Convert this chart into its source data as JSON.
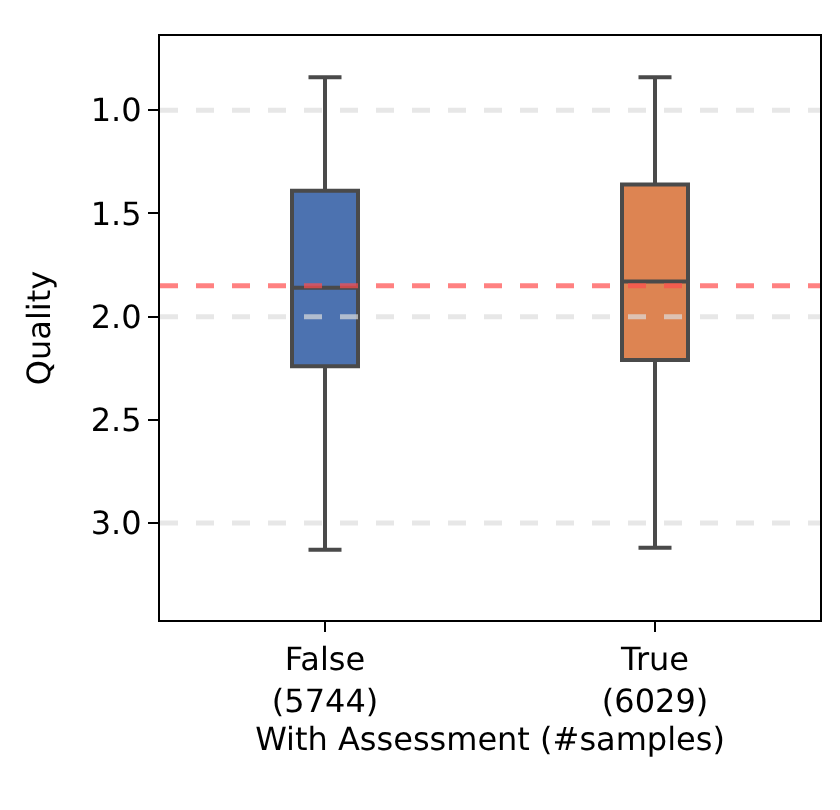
{
  "chart_data": {
    "type": "box",
    "ylabel": "Quality",
    "xlabel": "With Assessment (#samples)",
    "categories": [
      "False\n(5744)",
      "True\n(6029)"
    ],
    "series": [
      {
        "color": "#4c72b0",
        "boxes": [
          {
            "low": 0.84,
            "q1": 1.39,
            "median": 1.86,
            "q3": 2.24,
            "high": 3.13
          },
          null
        ]
      },
      {
        "color": "#dd8452",
        "boxes": [
          null,
          {
            "low": 0.84,
            "q1": 1.36,
            "median": 1.83,
            "q3": 2.21,
            "high": 3.12
          }
        ]
      }
    ],
    "ylim": [
      3.47,
      0.64
    ],
    "yticks": [
      {
        "value": 1,
        "label": "1.0"
      },
      1.5,
      {
        "value": 2,
        "label": "2.0"
      },
      2.5,
      {
        "value": 3,
        "label": "3.0"
      }
    ],
    "ref_lines": [
      {
        "axis": "y",
        "value": 1.0,
        "color": "#dddddd",
        "line_style": "dashed"
      },
      {
        "axis": "y",
        "value": 2.0,
        "color": "#dddddd",
        "line_style": "dashed"
      },
      {
        "axis": "y",
        "value": 3.0,
        "color": "#dddddd",
        "line_style": "dashed"
      },
      {
        "axis": "y",
        "value": 1.85,
        "color": "#ff4d4d",
        "line_style": "dashed"
      }
    ]
  }
}
